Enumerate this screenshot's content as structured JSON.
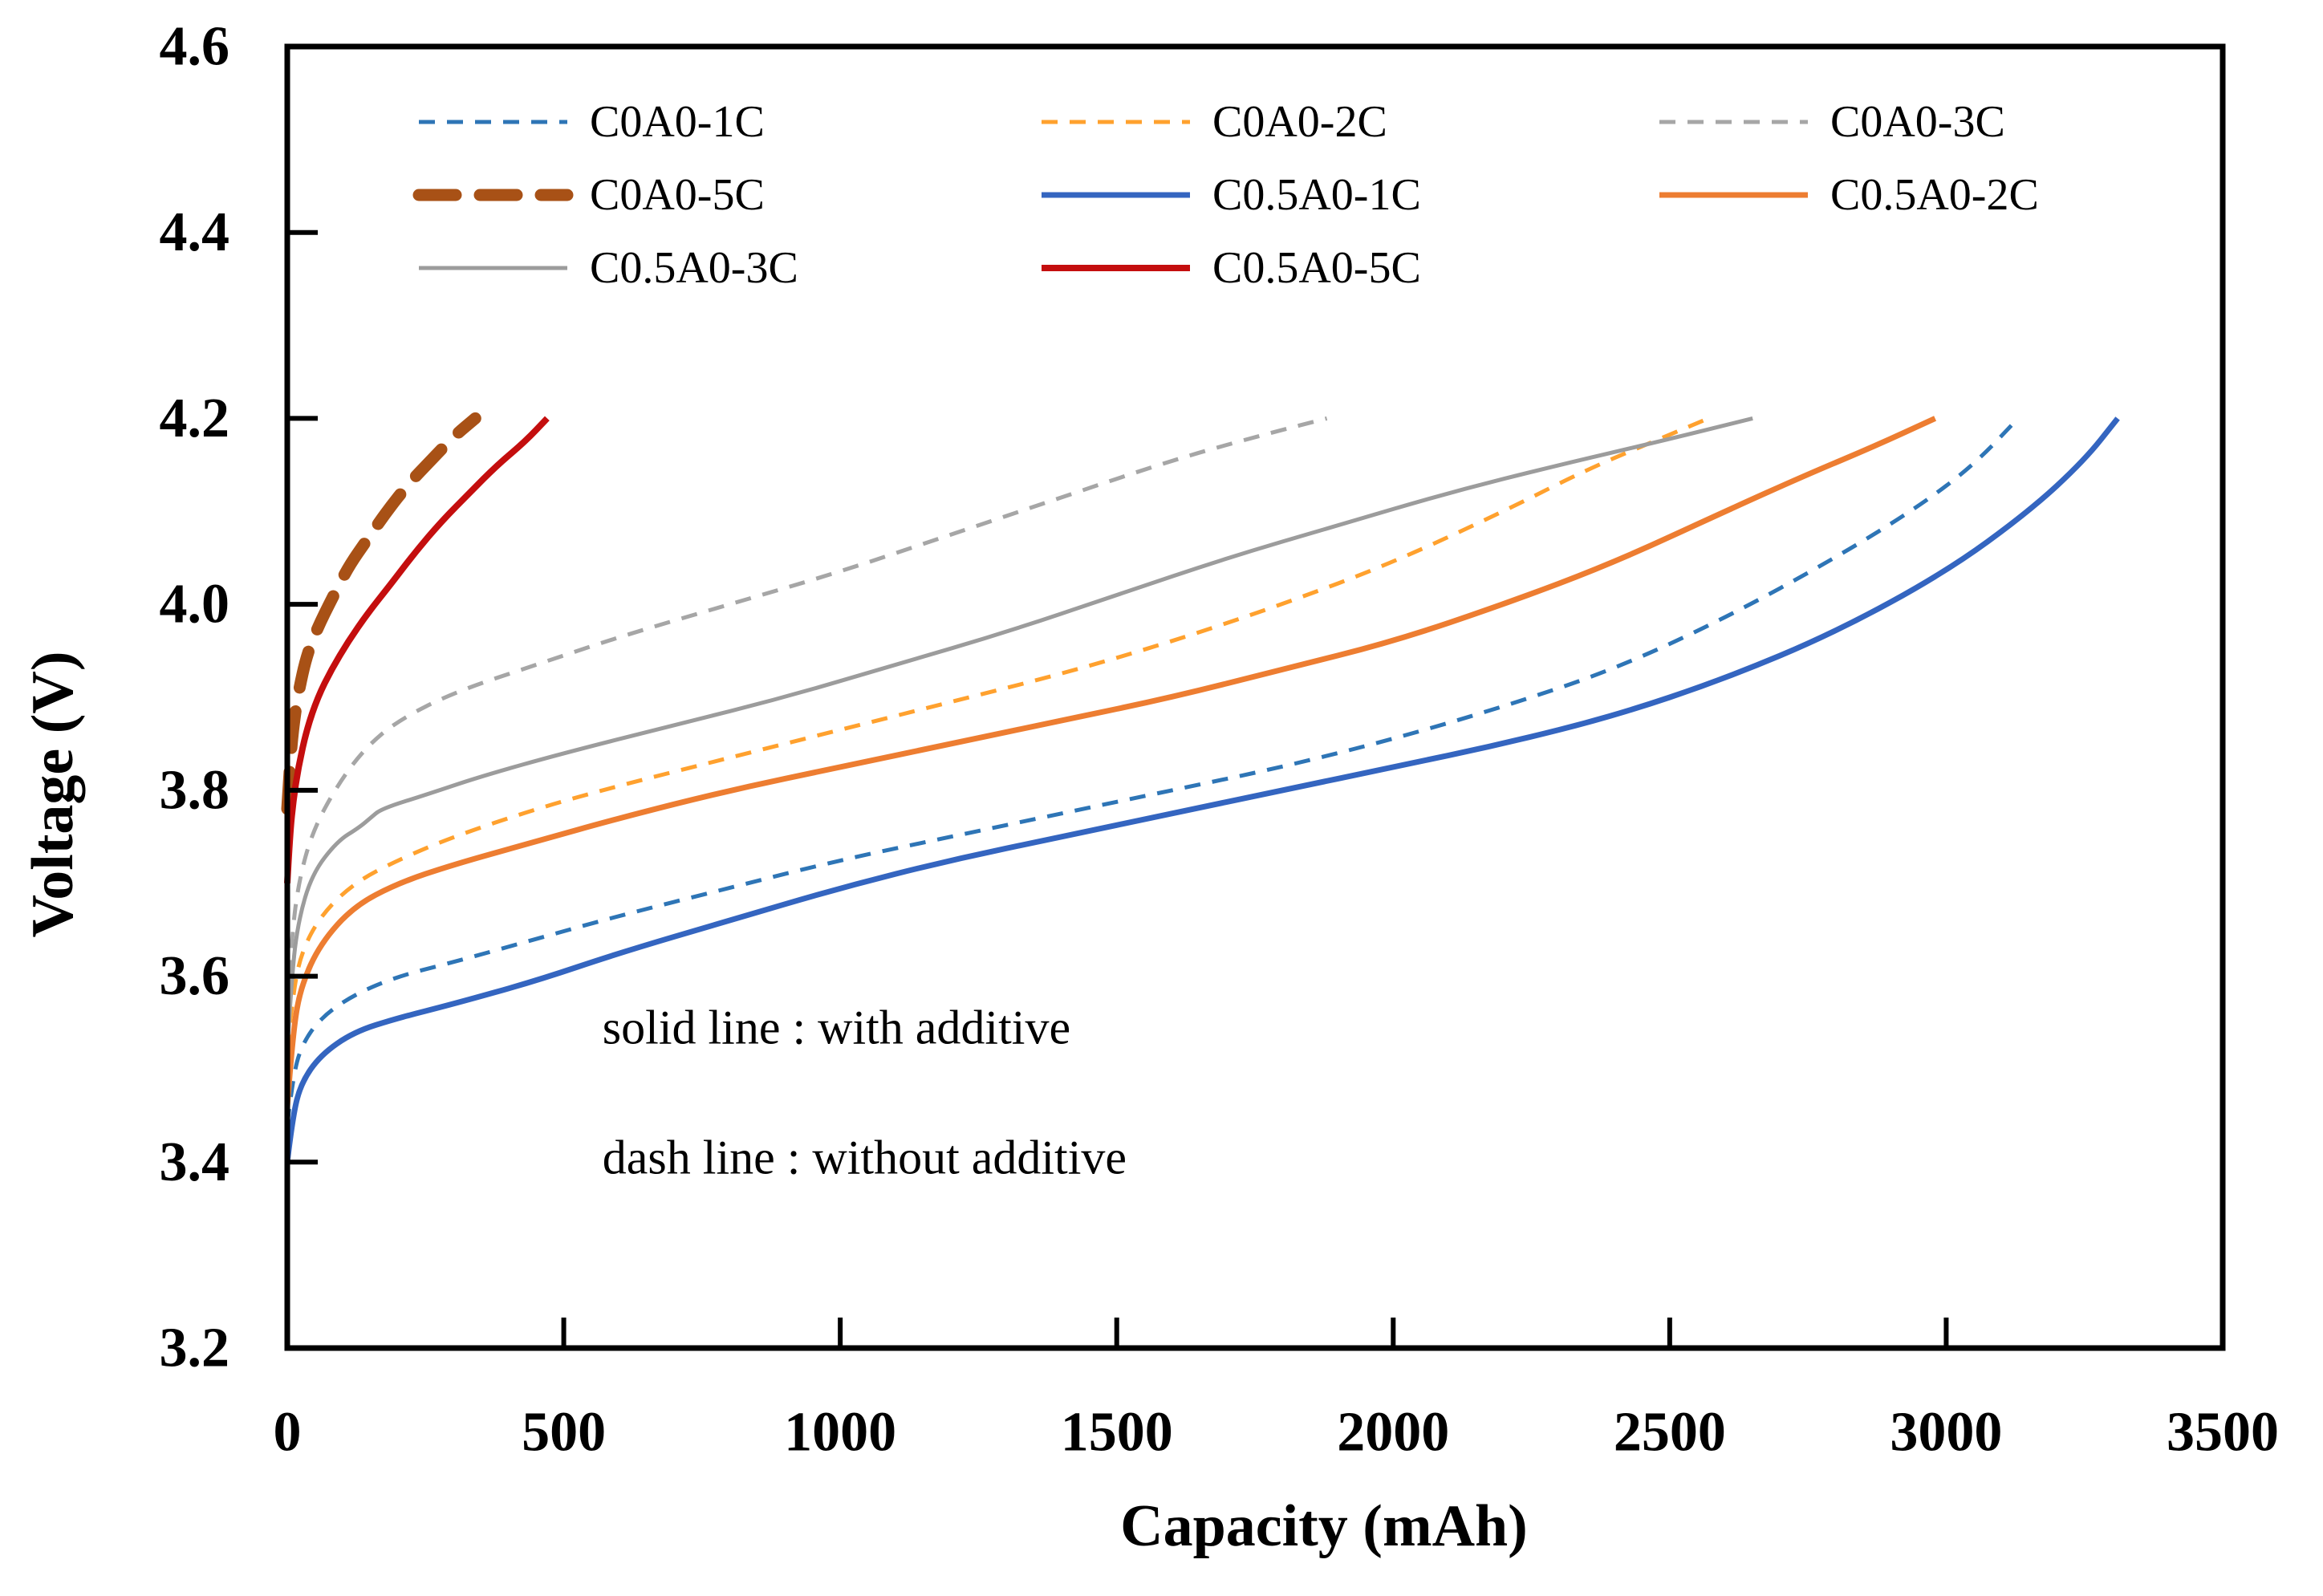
{
  "chart_data": {
    "type": "line",
    "title": "",
    "xlabel": "Capacity (mAh)",
    "ylabel": "Voltage (V)",
    "xlim": [
      0,
      3500
    ],
    "ylim": [
      3.2,
      4.6
    ],
    "x_ticks": [
      0,
      500,
      1000,
      1500,
      2000,
      2500,
      3000,
      3500
    ],
    "y_ticks": [
      3.2,
      3.4,
      3.6,
      3.8,
      4.0,
      4.2,
      4.4,
      4.6
    ],
    "x_tick_labels": [
      "0",
      "500",
      "1000",
      "1500",
      "2000",
      "2500",
      "3000",
      "3500"
    ],
    "y_tick_labels": [
      "3.2",
      "3.4",
      "3.6",
      "3.8",
      "4.0",
      "4.2",
      "4.4",
      "4.6"
    ],
    "grid": false,
    "frame_color": "#000000",
    "legend_position": "top-inside",
    "legend_columns": 3,
    "annotations": [
      {
        "text": "solid line : with additive",
        "x": 570,
        "v": 3.545
      },
      {
        "text": "dash line : without additive",
        "x": 570,
        "v": 3.405
      }
    ],
    "series": [
      {
        "name": "C0A0-1C",
        "style": "dashed",
        "color": "#2E75B6",
        "width": 5,
        "points": [
          [
            0,
            3.44
          ],
          [
            10,
            3.49
          ],
          [
            25,
            3.525
          ],
          [
            60,
            3.555
          ],
          [
            120,
            3.58
          ],
          [
            200,
            3.6
          ],
          [
            300,
            3.615
          ],
          [
            450,
            3.64
          ],
          [
            600,
            3.665
          ],
          [
            800,
            3.695
          ],
          [
            1000,
            3.725
          ],
          [
            1200,
            3.75
          ],
          [
            1400,
            3.775
          ],
          [
            1600,
            3.8
          ],
          [
            1800,
            3.825
          ],
          [
            2000,
            3.855
          ],
          [
            2200,
            3.89
          ],
          [
            2400,
            3.93
          ],
          [
            2600,
            3.985
          ],
          [
            2800,
            4.05
          ],
          [
            2950,
            4.105
          ],
          [
            3050,
            4.15
          ],
          [
            3130,
            4.2
          ]
        ]
      },
      {
        "name": "C0A0-2C",
        "style": "dashed",
        "color": "#FFA12E",
        "width": 5,
        "points": [
          [
            0,
            3.52
          ],
          [
            10,
            3.58
          ],
          [
            25,
            3.625
          ],
          [
            60,
            3.665
          ],
          [
            120,
            3.7
          ],
          [
            200,
            3.725
          ],
          [
            300,
            3.75
          ],
          [
            450,
            3.78
          ],
          [
            600,
            3.805
          ],
          [
            800,
            3.835
          ],
          [
            1000,
            3.865
          ],
          [
            1200,
            3.895
          ],
          [
            1400,
            3.925
          ],
          [
            1600,
            3.96
          ],
          [
            1800,
            4.0
          ],
          [
            2000,
            4.045
          ],
          [
            2200,
            4.1
          ],
          [
            2350,
            4.145
          ],
          [
            2470,
            4.175
          ],
          [
            2570,
            4.2
          ]
        ]
      },
      {
        "name": "C0A0-3C",
        "style": "dashed",
        "color": "#A6A6A6",
        "width": 5,
        "points": [
          [
            0,
            3.57
          ],
          [
            8,
            3.64
          ],
          [
            20,
            3.7
          ],
          [
            45,
            3.755
          ],
          [
            90,
            3.805
          ],
          [
            140,
            3.845
          ],
          [
            200,
            3.875
          ],
          [
            300,
            3.905
          ],
          [
            450,
            3.935
          ],
          [
            600,
            3.965
          ],
          [
            800,
            4.0
          ],
          [
            1000,
            4.035
          ],
          [
            1200,
            4.075
          ],
          [
            1400,
            4.115
          ],
          [
            1600,
            4.155
          ],
          [
            1750,
            4.18
          ],
          [
            1880,
            4.2
          ]
        ]
      },
      {
        "name": "C0A0-5C",
        "style": "dashed-thick",
        "color": "#A85116",
        "width": 15,
        "points": [
          [
            0,
            3.78
          ],
          [
            4,
            3.82
          ],
          [
            10,
            3.865
          ],
          [
            20,
            3.905
          ],
          [
            35,
            3.945
          ],
          [
            55,
            3.975
          ],
          [
            80,
            4.005
          ],
          [
            110,
            4.04
          ],
          [
            145,
            4.07
          ],
          [
            180,
            4.1
          ],
          [
            220,
            4.13
          ],
          [
            260,
            4.155
          ],
          [
            300,
            4.18
          ],
          [
            340,
            4.2
          ]
        ]
      },
      {
        "name": "C0.5A0-1C",
        "style": "solid",
        "color": "#3465C0",
        "width": 7,
        "points": [
          [
            0,
            3.4
          ],
          [
            10,
            3.45
          ],
          [
            25,
            3.485
          ],
          [
            60,
            3.515
          ],
          [
            120,
            3.54
          ],
          [
            200,
            3.555
          ],
          [
            300,
            3.57
          ],
          [
            450,
            3.595
          ],
          [
            600,
            3.625
          ],
          [
            800,
            3.66
          ],
          [
            1000,
            3.695
          ],
          [
            1200,
            3.725
          ],
          [
            1400,
            3.75
          ],
          [
            1600,
            3.775
          ],
          [
            1800,
            3.8
          ],
          [
            2000,
            3.825
          ],
          [
            2200,
            3.85
          ],
          [
            2400,
            3.88
          ],
          [
            2600,
            3.92
          ],
          [
            2800,
            3.97
          ],
          [
            3000,
            4.035
          ],
          [
            3150,
            4.1
          ],
          [
            3250,
            4.155
          ],
          [
            3310,
            4.2
          ]
        ]
      },
      {
        "name": "C0.5A0-2C",
        "style": "solid",
        "color": "#ED7D31",
        "width": 7,
        "points": [
          [
            0,
            3.46
          ],
          [
            10,
            3.54
          ],
          [
            25,
            3.59
          ],
          [
            60,
            3.635
          ],
          [
            120,
            3.675
          ],
          [
            200,
            3.7
          ],
          [
            300,
            3.72
          ],
          [
            450,
            3.745
          ],
          [
            600,
            3.77
          ],
          [
            800,
            3.8
          ],
          [
            1000,
            3.825
          ],
          [
            1200,
            3.85
          ],
          [
            1400,
            3.875
          ],
          [
            1600,
            3.9
          ],
          [
            1800,
            3.93
          ],
          [
            2000,
            3.96
          ],
          [
            2200,
            4.0
          ],
          [
            2400,
            4.045
          ],
          [
            2600,
            4.1
          ],
          [
            2750,
            4.14
          ],
          [
            2870,
            4.17
          ],
          [
            2980,
            4.2
          ]
        ]
      },
      {
        "name": "C0.5A0-3C",
        "style": "solid",
        "color": "#9C9C9C",
        "width": 5,
        "points": [
          [
            0,
            3.52
          ],
          [
            8,
            3.6
          ],
          [
            20,
            3.66
          ],
          [
            45,
            3.71
          ],
          [
            90,
            3.745
          ],
          [
            130,
            3.76
          ],
          [
            150,
            3.77
          ],
          [
            170,
            3.78
          ],
          [
            250,
            3.795
          ],
          [
            350,
            3.815
          ],
          [
            500,
            3.84
          ],
          [
            700,
            3.87
          ],
          [
            900,
            3.9
          ],
          [
            1100,
            3.935
          ],
          [
            1300,
            3.97
          ],
          [
            1500,
            4.01
          ],
          [
            1700,
            4.05
          ],
          [
            1900,
            4.085
          ],
          [
            2100,
            4.12
          ],
          [
            2300,
            4.15
          ],
          [
            2480,
            4.175
          ],
          [
            2650,
            4.2
          ]
        ]
      },
      {
        "name": "C0.5A0-5C",
        "style": "solid",
        "color": "#C40E0E",
        "width": 8,
        "points": [
          [
            0,
            3.7
          ],
          [
            4,
            3.745
          ],
          [
            10,
            3.785
          ],
          [
            20,
            3.825
          ],
          [
            35,
            3.865
          ],
          [
            55,
            3.9
          ],
          [
            80,
            3.93
          ],
          [
            110,
            3.96
          ],
          [
            145,
            3.99
          ],
          [
            185,
            4.02
          ],
          [
            230,
            4.055
          ],
          [
            280,
            4.09
          ],
          [
            330,
            4.12
          ],
          [
            380,
            4.15
          ],
          [
            430,
            4.175
          ],
          [
            470,
            4.2
          ]
        ]
      }
    ],
    "legend_order": [
      "C0A0-1C",
      "C0A0-2C",
      "C0A0-3C",
      "C0A0-5C",
      "C0.5A0-1C",
      "C0.5A0-2C",
      "C0.5A0-3C",
      "C0.5A0-5C"
    ]
  }
}
